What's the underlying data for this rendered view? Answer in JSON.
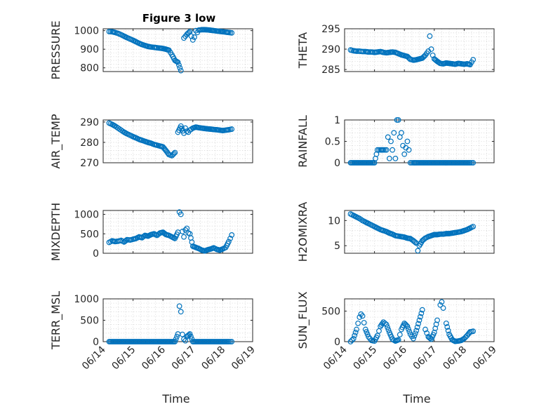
{
  "figure": {
    "title": "Figure 3 low",
    "xlabel": "Time"
  },
  "colors": {
    "marker": "#0072BD",
    "axis": "#262626"
  },
  "chart_data": [
    {
      "type": "scatter",
      "ylabel": "PRESSURE",
      "ylim": [
        780,
        1010
      ],
      "yticks": [
        800,
        900,
        1000
      ],
      "xlim": [
        "06/14 00:00",
        "06/19 00:00"
      ],
      "grid": true,
      "x_day": [
        0.2,
        0.3,
        0.4,
        0.5,
        0.6,
        0.7,
        0.8,
        0.9,
        1.0,
        1.1,
        1.2,
        1.3,
        1.4,
        1.5,
        1.6,
        1.7,
        1.8,
        1.9,
        2.0,
        2.1,
        2.2,
        2.3,
        2.4,
        2.5,
        2.6,
        2.7,
        2.8,
        2.9,
        2.95,
        3.0,
        3.05,
        3.1,
        3.15,
        3.2,
        3.3,
        3.4,
        3.5,
        3.6,
        3.7,
        3.8,
        3.9,
        4.0,
        4.1,
        4.2,
        4.3
      ],
      "y": [
        995,
        994,
        990,
        985,
        978,
        970,
        962,
        955,
        948,
        940,
        932,
        925,
        920,
        915,
        912,
        910,
        908,
        906,
        904,
        900,
        895,
        870,
        840,
        830,
        785,
        960,
        980,
        995,
        970,
        950,
        965,
        1000,
        990,
        1003,
        1005,
        1005,
        1004,
        1002,
        1000,
        998,
        996,
        994,
        992,
        990,
        988
      ]
    },
    {
      "type": "scatter",
      "ylabel": "THETA",
      "ylim": [
        284.5,
        295
      ],
      "yticks": [
        285,
        290,
        295
      ],
      "xlim": [
        "06/14 00:00",
        "06/19 00:00"
      ],
      "grid": true,
      "x_day": [
        0.2,
        0.3,
        0.4,
        0.5,
        0.6,
        0.7,
        0.8,
        0.9,
        1.0,
        1.1,
        1.2,
        1.3,
        1.4,
        1.5,
        1.6,
        1.7,
        1.8,
        1.9,
        2.0,
        2.1,
        2.2,
        2.3,
        2.4,
        2.5,
        2.6,
        2.7,
        2.8,
        2.85,
        2.9,
        2.95,
        3.0,
        3.1,
        3.2,
        3.3,
        3.4,
        3.5,
        3.6,
        3.7,
        3.8,
        3.9,
        4.0,
        4.1,
        4.2,
        4.3
      ],
      "y": [
        289.8,
        289.6,
        289.5,
        289.5,
        289.4,
        289.4,
        289.3,
        289.3,
        289.2,
        289.3,
        289.4,
        289.2,
        289.1,
        289.2,
        289.3,
        289.2,
        288.9,
        288.6,
        288.4,
        288.2,
        287.5,
        287.3,
        287.4,
        287.6,
        287.8,
        288.5,
        289.5,
        293.2,
        290.0,
        288.5,
        287.6,
        287.0,
        286.5,
        286.4,
        286.6,
        286.5,
        286.4,
        286.3,
        286.5,
        286.4,
        286.3,
        286.4,
        286.2,
        287.4
      ]
    },
    {
      "type": "scatter",
      "ylabel": "AIR_TEMP",
      "ylim": [
        270,
        291
      ],
      "yticks": [
        270,
        280,
        290
      ],
      "xlim": [
        "06/14 00:00",
        "06/19 00:00"
      ],
      "grid": true,
      "x_day": [
        0.2,
        0.3,
        0.4,
        0.5,
        0.6,
        0.7,
        0.8,
        0.9,
        1.0,
        1.1,
        1.2,
        1.3,
        1.4,
        1.5,
        1.6,
        1.7,
        1.8,
        1.9,
        2.0,
        2.1,
        2.2,
        2.3,
        2.4,
        2.5,
        2.6,
        2.7,
        2.75,
        2.8,
        2.85,
        2.9,
        2.95,
        3.0,
        3.1,
        3.2,
        3.3,
        3.4,
        3.5,
        3.6,
        3.7,
        3.8,
        3.9,
        4.0,
        4.1,
        4.2,
        4.3
      ],
      "y": [
        289.5,
        288.8,
        288.0,
        287.0,
        286.0,
        285.0,
        284.2,
        283.5,
        282.8,
        282.2,
        281.5,
        281.0,
        280.5,
        280.0,
        279.6,
        279.0,
        278.6,
        278.2,
        277.8,
        276.0,
        274.0,
        273.5,
        275.0,
        285.0,
        288.0,
        284.5,
        287.0,
        285.5,
        285.0,
        286.0,
        286.5,
        287.0,
        287.5,
        287.2,
        287.0,
        286.8,
        286.6,
        286.5,
        286.3,
        286.2,
        286.0,
        285.8,
        286.0,
        286.2,
        286.5
      ]
    },
    {
      "type": "scatter",
      "ylabel": "RAINFALL",
      "ylim": [
        0,
        1
      ],
      "yticks": [
        0,
        0.5,
        1
      ],
      "xlim": [
        "06/14 00:00",
        "06/19 00:00"
      ],
      "grid": true,
      "x_day": [
        0.2,
        0.4,
        0.6,
        0.8,
        1.0,
        1.1,
        1.2,
        1.3,
        1.4,
        1.45,
        1.5,
        1.55,
        1.6,
        1.65,
        1.7,
        1.75,
        1.8,
        1.85,
        1.9,
        1.95,
        2.0,
        2.05,
        2.1,
        2.15,
        2.2,
        2.25,
        2.3,
        2.4,
        2.6,
        2.8,
        3.0,
        3.2,
        3.4,
        3.6,
        3.8,
        4.0,
        4.2,
        4.3
      ],
      "y": [
        0,
        0,
        0,
        0,
        0,
        0.3,
        0.3,
        0.3,
        0.3,
        0.6,
        0.1,
        0.5,
        0.3,
        0.7,
        0.1,
        1.0,
        1.0,
        0.6,
        0.7,
        0.4,
        0.2,
        0.35,
        0.5,
        0.3,
        0,
        0,
        0,
        0,
        0,
        0,
        0,
        0,
        0,
        0,
        0,
        0,
        0,
        0
      ]
    },
    {
      "type": "scatter",
      "ylabel": "MIXDEPTH",
      "ylim": [
        0,
        1100
      ],
      "yticks": [
        0,
        500,
        1000
      ],
      "xlim": [
        "06/14 00:00",
        "06/19 00:00"
      ],
      "grid": true,
      "x_day": [
        0.2,
        0.3,
        0.4,
        0.5,
        0.6,
        0.7,
        0.8,
        0.9,
        1.0,
        1.1,
        1.2,
        1.3,
        1.4,
        1.5,
        1.6,
        1.7,
        1.8,
        1.9,
        2.0,
        2.1,
        2.2,
        2.3,
        2.4,
        2.5,
        2.55,
        2.6,
        2.65,
        2.7,
        2.75,
        2.8,
        2.85,
        2.9,
        3.0,
        3.1,
        3.2,
        3.3,
        3.4,
        3.5,
        3.6,
        3.7,
        3.8,
        3.9,
        4.0,
        4.1,
        4.2,
        4.25,
        4.3
      ],
      "y": [
        280,
        320,
        300,
        310,
        330,
        290,
        350,
        340,
        360,
        380,
        420,
        400,
        460,
        440,
        480,
        500,
        460,
        520,
        540,
        480,
        460,
        420,
        380,
        540,
        1060,
        1000,
        560,
        420,
        600,
        640,
        520,
        500,
        180,
        150,
        120,
        80,
        60,
        90,
        110,
        140,
        100,
        80,
        110,
        150,
        300,
        380,
        470
      ]
    },
    {
      "type": "scatter",
      "ylabel": "H2OMIXRA",
      "ylim": [
        3.5,
        12
      ],
      "yticks": [
        5,
        10
      ],
      "xlim": [
        "06/14 00:00",
        "06/19 00:00"
      ],
      "grid": true,
      "x_day": [
        0.2,
        0.3,
        0.4,
        0.5,
        0.6,
        0.7,
        0.8,
        0.9,
        1.0,
        1.1,
        1.2,
        1.3,
        1.4,
        1.5,
        1.6,
        1.7,
        1.8,
        1.9,
        2.0,
        2.1,
        2.2,
        2.3,
        2.4,
        2.45,
        2.5,
        2.6,
        2.7,
        2.8,
        2.9,
        3.0,
        3.1,
        3.2,
        3.3,
        3.4,
        3.5,
        3.6,
        3.7,
        3.8,
        3.9,
        4.0,
        4.1,
        4.2,
        4.3
      ],
      "y": [
        11.3,
        11.0,
        10.7,
        10.4,
        10.0,
        9.7,
        9.4,
        9.1,
        8.8,
        8.5,
        8.2,
        8.0,
        7.8,
        7.5,
        7.3,
        7.0,
        6.9,
        6.8,
        6.7,
        6.5,
        6.4,
        6.0,
        5.5,
        4.0,
        5.0,
        6.0,
        6.5,
        6.8,
        7.0,
        7.2,
        7.2,
        7.3,
        7.3,
        7.4,
        7.4,
        7.5,
        7.6,
        7.7,
        7.8,
        8.0,
        8.2,
        8.5,
        8.8
      ]
    },
    {
      "type": "scatter",
      "ylabel": "TERR_MSL",
      "ylim": [
        0,
        1000
      ],
      "yticks": [
        0,
        500,
        1000
      ],
      "xlim": [
        "06/14 00:00",
        "06/19 00:00"
      ],
      "grid": true,
      "x_day": [
        0.2,
        0.4,
        0.6,
        0.8,
        1.0,
        1.2,
        1.4,
        1.6,
        1.8,
        2.0,
        2.2,
        2.4,
        2.5,
        2.55,
        2.6,
        2.65,
        2.7,
        2.75,
        2.8,
        2.9,
        3.0,
        3.2,
        3.4,
        3.6,
        3.8,
        4.0,
        4.2,
        4.3
      ],
      "y": [
        0,
        0,
        0,
        0,
        0,
        0,
        0,
        0,
        0,
        0,
        0,
        0,
        180,
        830,
        700,
        170,
        60,
        20,
        120,
        180,
        0,
        0,
        0,
        0,
        0,
        0,
        0,
        0
      ]
    },
    {
      "type": "scatter",
      "ylabel": "SUN_FLUX",
      "ylim": [
        0,
        700
      ],
      "yticks": [
        0,
        500
      ],
      "xlim": [
        "06/14 00:00",
        "06/19 00:00"
      ],
      "grid": true,
      "x_day": [
        0.2,
        0.3,
        0.4,
        0.5,
        0.55,
        0.6,
        0.7,
        0.8,
        0.9,
        1.0,
        1.1,
        1.2,
        1.3,
        1.4,
        1.5,
        1.6,
        1.7,
        1.8,
        1.9,
        2.0,
        2.1,
        2.2,
        2.3,
        2.4,
        2.5,
        2.6,
        2.7,
        2.8,
        2.9,
        3.0,
        3.1,
        3.2,
        3.25,
        3.3,
        3.4,
        3.5,
        3.6,
        3.7,
        3.8,
        3.9,
        4.0,
        4.1,
        4.2,
        4.3
      ],
      "y": [
        0,
        50,
        200,
        400,
        450,
        420,
        200,
        80,
        20,
        10,
        100,
        250,
        320,
        280,
        150,
        40,
        10,
        30,
        200,
        300,
        250,
        120,
        50,
        180,
        350,
        520,
        200,
        80,
        40,
        150,
        350,
        600,
        650,
        550,
        300,
        120,
        30,
        5,
        10,
        20,
        50,
        100,
        160,
        170
      ]
    }
  ]
}
